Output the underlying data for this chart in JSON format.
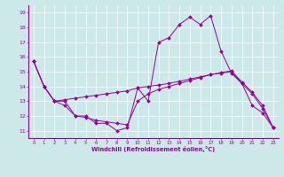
{
  "xlabel": "Windchill (Refroidissement éolien,°C)",
  "bg_color": "#cce8e8",
  "line_color": "#990099",
  "xlim": [
    -0.5,
    23.5
  ],
  "ylim": [
    10.5,
    19.5
  ],
  "xticks": [
    0,
    1,
    2,
    3,
    4,
    5,
    6,
    7,
    8,
    9,
    10,
    11,
    12,
    13,
    14,
    15,
    16,
    17,
    18,
    19,
    20,
    21,
    22,
    23
  ],
  "yticks": [
    11,
    12,
    13,
    14,
    15,
    16,
    17,
    18,
    19
  ],
  "series": [
    [
      15.7,
      14.0,
      13.0,
      13.0,
      12.0,
      12.0,
      11.5,
      11.5,
      11.0,
      11.2,
      13.9,
      13.0,
      17.0,
      17.3,
      18.2,
      18.7,
      18.2,
      18.8,
      16.4,
      14.9,
      14.2,
      12.7,
      12.2,
      11.2
    ],
    [
      15.7,
      14.0,
      13.0,
      12.7,
      12.0,
      11.9,
      11.7,
      11.6,
      11.5,
      11.4,
      13.0,
      13.5,
      13.8,
      14.0,
      14.2,
      14.4,
      14.6,
      14.8,
      14.9,
      15.0,
      14.2,
      13.5,
      12.5,
      11.2
    ],
    [
      15.7,
      14.0,
      13.0,
      13.1,
      13.2,
      13.3,
      13.4,
      13.5,
      13.6,
      13.7,
      13.9,
      14.0,
      14.1,
      14.2,
      14.35,
      14.5,
      14.65,
      14.8,
      14.95,
      15.05,
      14.3,
      13.6,
      12.7,
      11.2
    ]
  ]
}
